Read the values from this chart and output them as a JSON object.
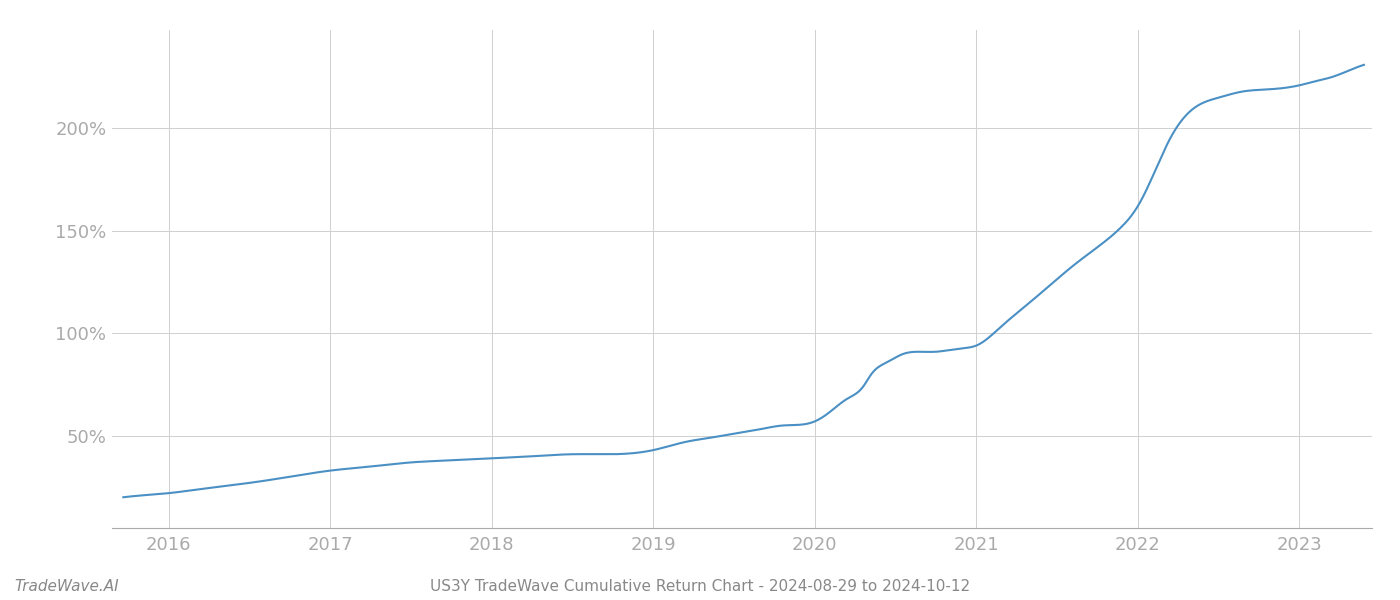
{
  "title": "US3Y TradeWave Cumulative Return Chart - 2024-08-29 to 2024-10-12",
  "watermark": "TradeWave.AI",
  "line_color": "#4a90c4",
  "background_color": "#ffffff",
  "grid_color": "#d0d0d0",
  "x_years": [
    2016,
    2017,
    2018,
    2019,
    2020,
    2021,
    2022,
    2023
  ],
  "y_ticks": [
    50,
    100,
    150,
    200
  ],
  "y_tick_labels": [
    "50%",
    "100%",
    "150%",
    "200%"
  ],
  "xlim_start": 2015.65,
  "xlim_end": 2023.45,
  "ylim_min": 5,
  "ylim_max": 248,
  "data_x": [
    2015.72,
    2015.85,
    2016.0,
    2016.2,
    2016.5,
    2016.75,
    2017.0,
    2017.25,
    2017.5,
    2017.75,
    2018.0,
    2018.25,
    2018.5,
    2018.75,
    2019.0,
    2019.1,
    2019.2,
    2019.35,
    2019.5,
    2019.65,
    2019.8,
    2020.0,
    2020.1,
    2020.2,
    2020.3,
    2020.35,
    2020.45,
    2020.55,
    2020.65,
    2020.75,
    2020.85,
    2020.95,
    2021.0,
    2021.15,
    2021.3,
    2021.45,
    2021.6,
    2021.75,
    2021.9,
    2022.0,
    2022.1,
    2022.2,
    2022.35,
    2022.5,
    2022.65,
    2022.8,
    2023.0,
    2023.1,
    2023.2,
    2023.3,
    2023.4
  ],
  "data_y": [
    20,
    21,
    22,
    24,
    27,
    30,
    33,
    35,
    37,
    38,
    39,
    40,
    41,
    41,
    43,
    45,
    47,
    49,
    51,
    53,
    55,
    57,
    62,
    68,
    74,
    80,
    86,
    90,
    91,
    91,
    92,
    93,
    94,
    103,
    113,
    123,
    133,
    142,
    152,
    162,
    178,
    195,
    210,
    215,
    218,
    219,
    221,
    223,
    225,
    228,
    231
  ]
}
